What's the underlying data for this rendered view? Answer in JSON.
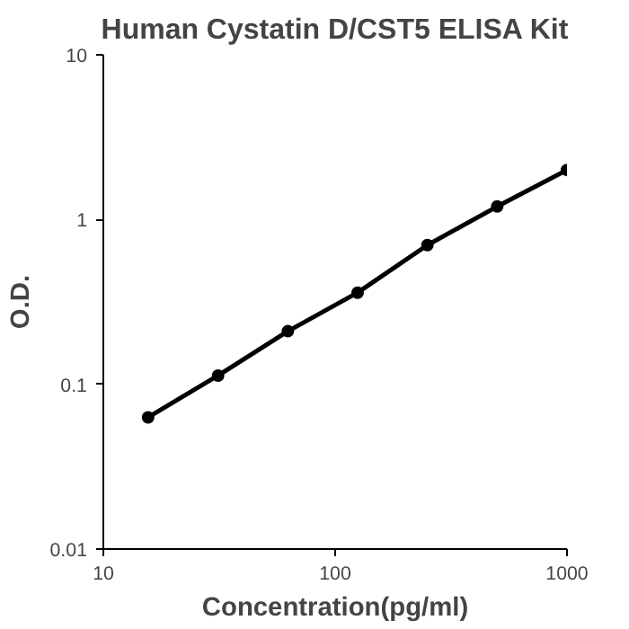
{
  "chart_data": {
    "type": "line",
    "title": "Human Cystatin D/CST5 ELISA Kit",
    "xlabel": "Concentration(pg/ml)",
    "ylabel": "O.D.",
    "x": [
      15.6,
      31.25,
      62.5,
      125,
      250,
      500,
      1000
    ],
    "series": [
      {
        "color": "#000000",
        "values": [
          0.063,
          0.113,
          0.21,
          0.36,
          0.7,
          1.2,
          2.0
        ]
      }
    ],
    "log": "xy",
    "xlim": [
      10,
      1000
    ],
    "ylim": [
      0.01,
      10
    ],
    "xticks": [
      10,
      100,
      1000
    ],
    "yticks": [
      0.01,
      0.1,
      1,
      10
    ],
    "grid": false,
    "marker": "circle",
    "line_style": "solid"
  }
}
